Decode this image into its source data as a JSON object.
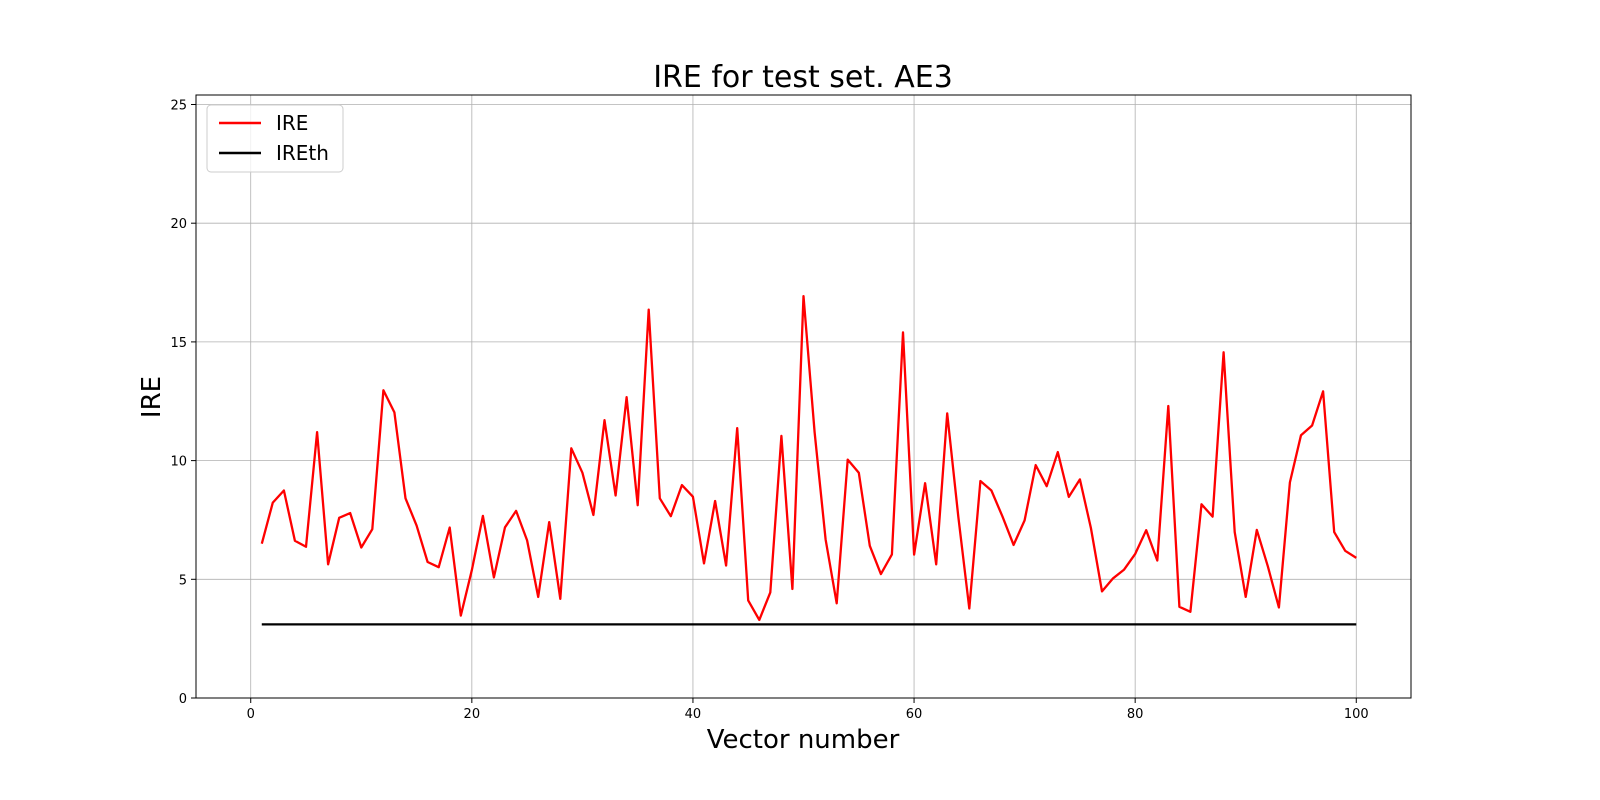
{
  "chart_data": {
    "type": "line",
    "title": "IRE for test set. AE3",
    "xlabel": "Vector number",
    "ylabel": "IRE",
    "xlim": [
      -4.95,
      104.95
    ],
    "ylim": [
      0,
      25.4
    ],
    "xticks": [
      0,
      20,
      40,
      60,
      80,
      100
    ],
    "yticks": [
      0,
      5,
      10,
      15,
      20,
      25
    ],
    "grid": true,
    "legend_position": "top-left",
    "x": [
      1,
      2,
      3,
      4,
      5,
      6,
      7,
      8,
      9,
      10,
      11,
      12,
      13,
      14,
      15,
      16,
      17,
      18,
      19,
      20,
      21,
      22,
      23,
      24,
      25,
      26,
      27,
      28,
      29,
      30,
      31,
      32,
      33,
      34,
      35,
      36,
      37,
      38,
      39,
      40,
      41,
      42,
      43,
      44,
      45,
      46,
      47,
      48,
      49,
      50,
      51,
      52,
      53,
      54,
      55,
      56,
      57,
      58,
      59,
      60,
      61,
      62,
      63,
      64,
      65,
      66,
      67,
      68,
      69,
      70,
      71,
      72,
      73,
      74,
      75,
      76,
      77,
      78,
      79,
      80,
      81,
      82,
      83,
      84,
      85,
      86,
      87,
      88,
      89,
      90,
      91,
      92,
      93,
      94,
      95,
      96,
      97,
      98,
      99,
      100
    ],
    "series": [
      {
        "name": "IRE",
        "color": "#ff0000",
        "values": [
          6.5,
          8.23,
          8.74,
          6.62,
          6.37,
          11.2,
          5.63,
          7.59,
          7.79,
          6.34,
          7.11,
          12.96,
          12.03,
          8.41,
          7.26,
          5.73,
          5.51,
          7.18,
          3.47,
          5.38,
          7.67,
          5.08,
          7.19,
          7.88,
          6.64,
          4.26,
          7.41,
          4.18,
          10.52,
          9.49,
          7.71,
          11.7,
          8.53,
          12.67,
          8.12,
          16.36,
          8.41,
          7.66,
          8.97,
          8.48,
          5.67,
          8.3,
          5.58,
          11.37,
          4.11,
          3.29,
          4.45,
          11.04,
          4.59,
          16.93,
          11.2,
          6.68,
          3.99,
          10.04,
          9.49,
          6.41,
          5.22,
          6.05,
          15.4,
          6.04,
          9.05,
          5.63,
          11.99,
          7.64,
          3.77,
          9.14,
          8.74,
          7.64,
          6.45,
          7.48,
          9.81,
          8.92,
          10.36,
          8.47,
          9.21,
          7.16,
          4.49,
          5.04,
          5.41,
          6.07,
          7.07,
          5.79,
          12.3,
          3.84,
          3.63,
          8.16,
          7.64,
          14.56,
          6.99,
          4.26,
          7.08,
          5.55,
          3.81,
          9.08,
          11.07,
          11.48,
          12.92,
          6.99,
          6.2,
          5.9
        ]
      },
      {
        "name": "IREth",
        "color": "#000000",
        "constant": 3.1
      }
    ]
  }
}
